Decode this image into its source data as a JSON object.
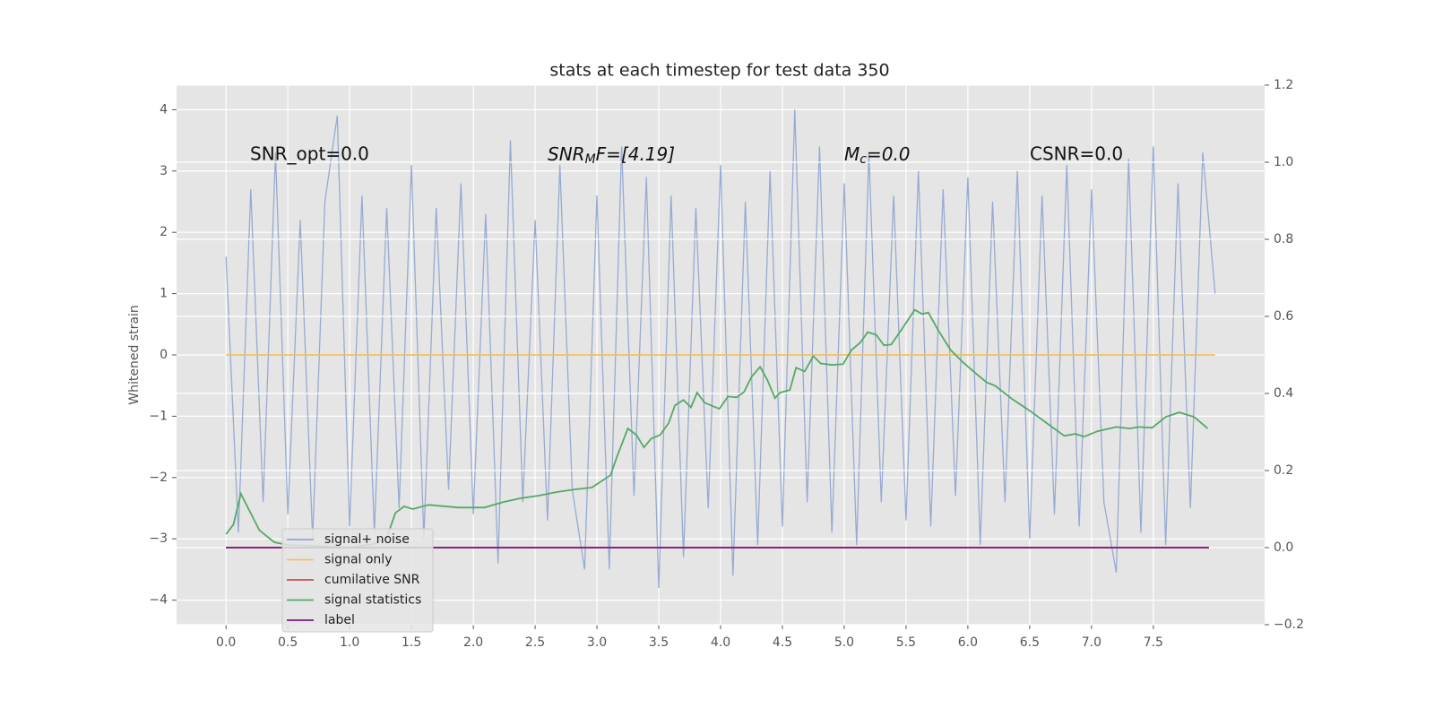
{
  "chart_data": {
    "type": "line",
    "title": "stats at each timestep for test data 350",
    "ylabel": "Whitened strain",
    "annotations": [
      "SNR_opt=0.0",
      {
        "main": "SNR",
        "sub": "M",
        "tail": "F=[4.19]"
      },
      {
        "main": "M",
        "sub": "c",
        "tail": "=0.0"
      },
      "CSNR=0.0"
    ],
    "xlim": [
      -0.4,
      8.4
    ],
    "xticks": [
      {
        "value": 0,
        "label": "0.0"
      },
      0.5,
      {
        "value": 1,
        "label": "1.0"
      },
      1.5,
      {
        "value": 2,
        "label": "2.0"
      },
      2.5,
      {
        "value": 3,
        "label": "3.0"
      },
      3.5,
      {
        "value": 4,
        "label": "4.0"
      },
      4.5,
      {
        "value": 5,
        "label": "5.0"
      },
      5.5,
      {
        "value": 6,
        "label": "6.0"
      },
      6.5,
      {
        "value": 7,
        "label": "7.0"
      },
      7.5
    ],
    "ylim": [
      -4.4,
      4.4
    ],
    "yticks": [
      {
        "value": -4,
        "label": "−4"
      },
      {
        "value": -3,
        "label": "−3"
      },
      {
        "value": -2,
        "label": "−2"
      },
      {
        "value": -1,
        "label": "−1"
      },
      0,
      1,
      2,
      3,
      4
    ],
    "y2lim": [
      -0.2,
      1.2
    ],
    "y2ticks": [
      {
        "value": -0.2,
        "label": "−0.2"
      },
      {
        "value": 0,
        "label": "0.0"
      },
      0.2,
      0.4,
      0.6,
      0.8,
      {
        "value": 1,
        "label": "1.0"
      },
      1.2
    ],
    "grid": true,
    "legend": "lower left",
    "series": [
      {
        "name": "signal+ noise",
        "color": "#92a8d1",
        "x": [
          0,
          0.1,
          0.2,
          0.3,
          0.4,
          0.5,
          0.6,
          0.7,
          0.8,
          0.9,
          1.0,
          1.1,
          1.2,
          1.3,
          1.4,
          1.5,
          1.6,
          1.7,
          1.8,
          1.9,
          2.0,
          2.1,
          2.2,
          2.3,
          2.4,
          2.5,
          2.6,
          2.7,
          2.8,
          2.9,
          3.0,
          3.1,
          3.2,
          3.3,
          3.4,
          3.5,
          3.6,
          3.7,
          3.8,
          3.9,
          4.0,
          4.1,
          4.2,
          4.3,
          4.4,
          4.5,
          4.6,
          4.7,
          4.8,
          4.9,
          5.0,
          5.1,
          5.2,
          5.3,
          5.4,
          5.5,
          5.6,
          5.7,
          5.8,
          5.9,
          6.0,
          6.1,
          6.2,
          6.3,
          6.4,
          6.5,
          6.6,
          6.7,
          6.8,
          6.9,
          7.0,
          7.1,
          7.2,
          7.3,
          7.4,
          7.5,
          7.6,
          7.7,
          7.8,
          7.9,
          8.0
        ],
        "values": [
          1.6,
          -2.9,
          2.7,
          -2.4,
          3.3,
          -2.6,
          2.2,
          -3.0,
          2.5,
          3.9,
          -2.8,
          2.6,
          -2.9,
          2.4,
          -2.5,
          3.1,
          -3.0,
          2.4,
          -2.2,
          2.8,
          -2.6,
          2.3,
          -3.4,
          3.5,
          -2.4,
          2.2,
          -2.7,
          3.1,
          -2.2,
          -3.5,
          2.6,
          -3.5,
          3.4,
          -2.3,
          2.9,
          -3.8,
          2.6,
          -3.3,
          2.4,
          -2.5,
          3.1,
          -3.6,
          2.5,
          -3.1,
          3.0,
          -2.8,
          4.0,
          -2.4,
          3.4,
          -2.9,
          2.8,
          -3.1,
          3.3,
          -2.4,
          2.6,
          -2.7,
          3.0,
          -2.8,
          2.7,
          -2.3,
          2.9,
          -3.1,
          2.5,
          -2.4,
          3.0,
          -3.0,
          2.6,
          -2.6,
          3.1,
          -2.8,
          2.7,
          -2.4,
          -3.55,
          3.2,
          -2.9,
          3.4,
          -3.1,
          2.8,
          -2.5,
          3.3,
          1.0
        ]
      },
      {
        "name": "signal only",
        "color": "#f0c060",
        "x": [
          0,
          8.0
        ],
        "values": [
          0,
          0
        ]
      },
      {
        "name": "cumilative SNR",
        "color": "#c44e52",
        "axis": "y2",
        "x": [
          0,
          7.95
        ],
        "values": [
          0,
          0
        ]
      },
      {
        "name": "signal statistics",
        "color": "#55a868",
        "axis": "y2",
        "x": [
          0,
          0.06,
          0.12,
          0.27,
          0.39,
          0.5,
          0.7,
          1.0,
          1.2,
          1.3,
          1.37,
          1.44,
          1.51,
          1.64,
          1.88,
          2.09,
          2.24,
          2.38,
          2.53,
          2.67,
          2.82,
          2.96,
          3.11,
          3.16,
          3.25,
          3.32,
          3.38,
          3.44,
          3.51,
          3.58,
          3.63,
          3.7,
          3.76,
          3.81,
          3.87,
          3.99,
          4.06,
          4.13,
          4.19,
          4.25,
          4.32,
          4.38,
          4.44,
          4.48,
          4.56,
          4.61,
          4.68,
          4.75,
          4.81,
          4.9,
          4.99,
          5.06,
          5.13,
          5.19,
          5.26,
          5.32,
          5.38,
          5.46,
          5.57,
          5.63,
          5.68,
          5.76,
          5.86,
          5.96,
          6.08,
          6.15,
          6.22,
          6.36,
          6.51,
          6.65,
          6.78,
          6.87,
          6.94,
          7.05,
          7.2,
          7.31,
          7.38,
          7.49,
          7.6,
          7.71,
          7.83,
          7.94
        ],
        "values": [
          0.035,
          0.06,
          0.14,
          0.045,
          0.014,
          0.007,
          0.005,
          0.0,
          0.01,
          0.026,
          0.09,
          0.107,
          0.1,
          0.111,
          0.104,
          0.104,
          0.118,
          0.128,
          0.135,
          0.144,
          0.151,
          0.156,
          0.188,
          0.234,
          0.309,
          0.292,
          0.26,
          0.283,
          0.292,
          0.323,
          0.369,
          0.383,
          0.364,
          0.402,
          0.376,
          0.36,
          0.392,
          0.39,
          0.404,
          0.443,
          0.469,
          0.434,
          0.388,
          0.402,
          0.409,
          0.467,
          0.457,
          0.497,
          0.478,
          0.474,
          0.476,
          0.513,
          0.532,
          0.559,
          0.552,
          0.525,
          0.527,
          0.564,
          0.617,
          0.606,
          0.61,
          0.564,
          0.513,
          0.481,
          0.448,
          0.429,
          0.42,
          0.385,
          0.353,
          0.32,
          0.29,
          0.295,
          0.288,
          0.302,
          0.313,
          0.309,
          0.313,
          0.311,
          0.339,
          0.351,
          0.339,
          0.309
        ]
      },
      {
        "name": "label",
        "color": "#7b1a7e",
        "axis": "y2",
        "x": [
          0,
          7.95
        ],
        "values": [
          0,
          0
        ]
      }
    ]
  }
}
